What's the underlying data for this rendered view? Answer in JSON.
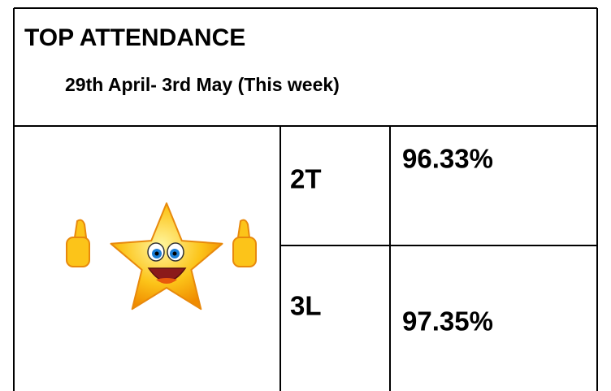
{
  "header": {
    "title": "TOP ATTENDANCE",
    "subtitle": "29th April- 3rd May (This week)"
  },
  "table": {
    "rows": [
      [
        "2T",
        "96.33%"
      ],
      [
        "3L",
        "97.35%"
      ]
    ]
  }
}
